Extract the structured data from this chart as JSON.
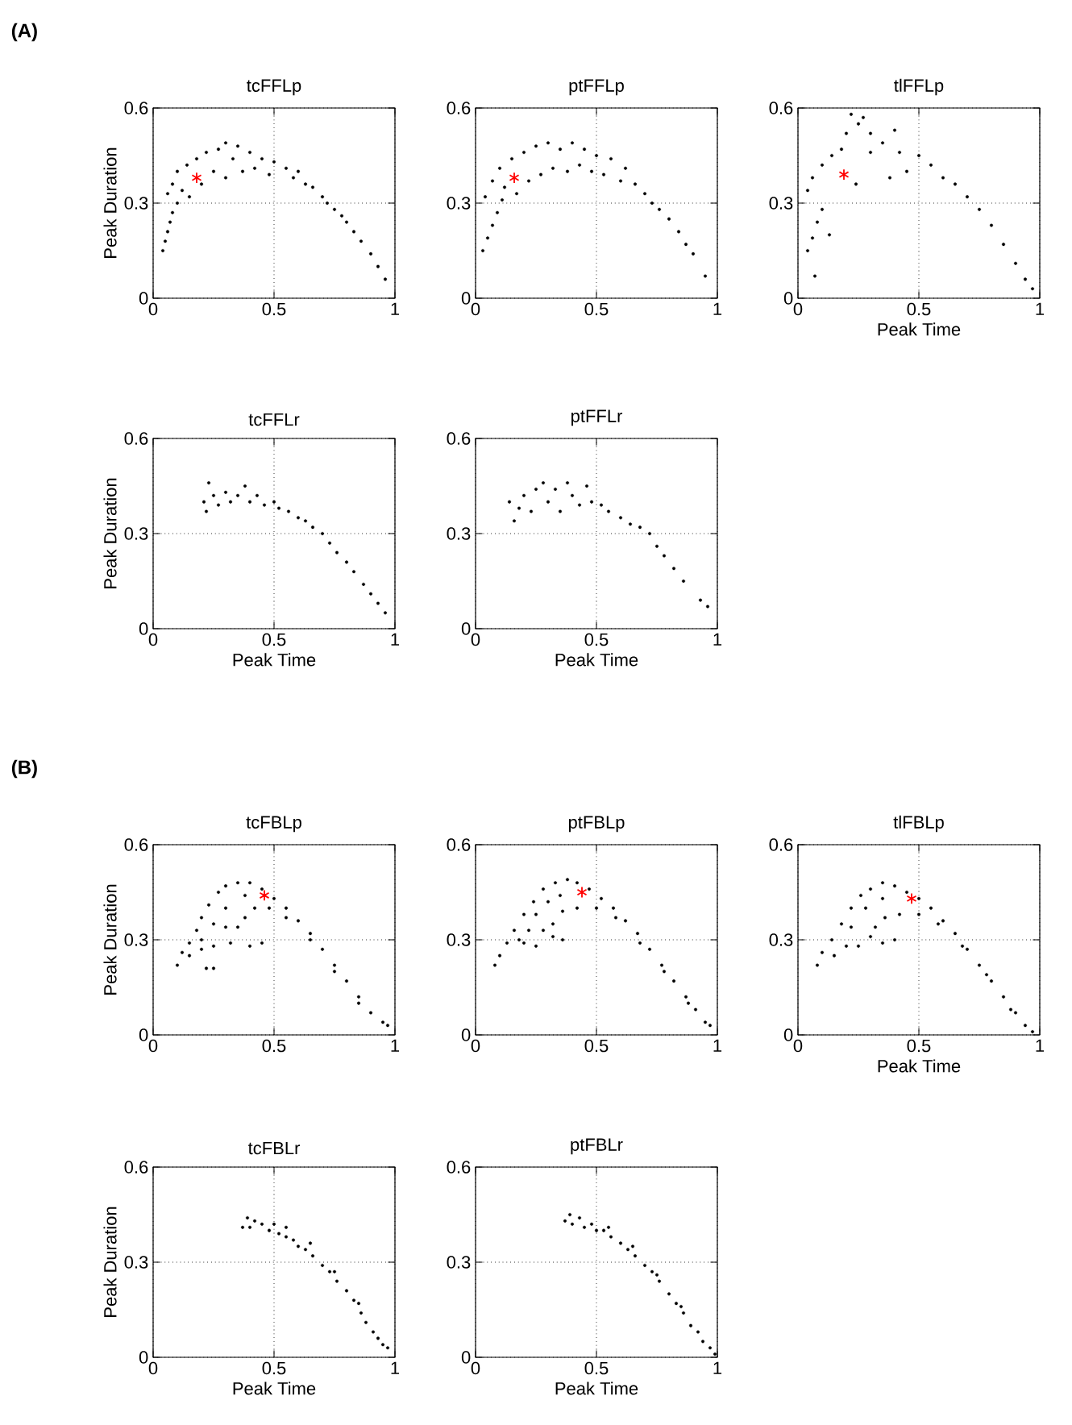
{
  "chart_data": [
    {
      "type": "scatter",
      "title": "tcFFLp",
      "ylabel": "Peak Duration",
      "annotations": [
        "(A)"
      ],
      "xlim": [
        0,
        1
      ],
      "ylim": [
        0,
        0.6
      ],
      "xticks": [
        0,
        0.5,
        1
      ],
      "yticks": [
        0,
        0.3,
        0.6
      ],
      "grid": true,
      "series": [
        {
          "color": "#000000",
          "marker": "circle",
          "x": [
            0.04,
            0.05,
            0.06,
            0.07,
            0.08,
            0.1,
            0.06,
            0.08,
            0.1,
            0.12,
            0.14,
            0.15,
            0.18,
            0.2,
            0.22,
            0.25,
            0.27,
            0.3,
            0.3,
            0.33,
            0.35,
            0.37,
            0.4,
            0.42,
            0.45,
            0.48,
            0.5,
            0.55,
            0.58,
            0.6,
            0.63,
            0.66,
            0.7,
            0.72,
            0.75,
            0.78,
            0.8,
            0.83,
            0.86,
            0.9,
            0.93,
            0.96
          ],
          "values": [
            0.15,
            0.18,
            0.21,
            0.24,
            0.27,
            0.3,
            0.33,
            0.36,
            0.4,
            0.34,
            0.42,
            0.32,
            0.44,
            0.36,
            0.46,
            0.4,
            0.47,
            0.49,
            0.38,
            0.44,
            0.48,
            0.4,
            0.46,
            0.41,
            0.44,
            0.39,
            0.43,
            0.41,
            0.38,
            0.4,
            0.36,
            0.35,
            0.32,
            0.3,
            0.28,
            0.26,
            0.24,
            0.21,
            0.18,
            0.14,
            0.1,
            0.06
          ]
        },
        {
          "color": "#ff0000",
          "marker": "cross",
          "x": [
            0.18
          ],
          "values": [
            0.38
          ]
        }
      ]
    },
    {
      "type": "scatter",
      "title": "ptFFLp",
      "xlim": [
        0,
        1
      ],
      "ylim": [
        0,
        0.6
      ],
      "xticks": [
        0,
        0.5,
        1
      ],
      "yticks": [
        0,
        0.3,
        0.6
      ],
      "grid": true,
      "series": [
        {
          "color": "#000000",
          "marker": "circle",
          "x": [
            0.03,
            0.05,
            0.07,
            0.09,
            0.11,
            0.04,
            0.07,
            0.1,
            0.12,
            0.15,
            0.17,
            0.2,
            0.22,
            0.25,
            0.27,
            0.3,
            0.32,
            0.35,
            0.38,
            0.4,
            0.43,
            0.45,
            0.48,
            0.5,
            0.53,
            0.56,
            0.6,
            0.62,
            0.66,
            0.7,
            0.73,
            0.76,
            0.8,
            0.84,
            0.87,
            0.9,
            0.95
          ],
          "values": [
            0.15,
            0.19,
            0.23,
            0.27,
            0.31,
            0.32,
            0.37,
            0.41,
            0.35,
            0.44,
            0.33,
            0.46,
            0.37,
            0.48,
            0.39,
            0.49,
            0.41,
            0.47,
            0.4,
            0.49,
            0.42,
            0.47,
            0.4,
            0.45,
            0.39,
            0.44,
            0.37,
            0.41,
            0.36,
            0.33,
            0.3,
            0.28,
            0.25,
            0.21,
            0.17,
            0.14,
            0.07
          ]
        },
        {
          "color": "#ff0000",
          "marker": "cross",
          "x": [
            0.16
          ],
          "values": [
            0.38
          ]
        }
      ]
    },
    {
      "type": "scatter",
      "title": "tlFFLp",
      "xlabel": "Peak Time",
      "xlim": [
        0,
        1
      ],
      "ylim": [
        0,
        0.6
      ],
      "xticks": [
        0,
        0.5,
        1
      ],
      "yticks": [
        0,
        0.3,
        0.6
      ],
      "grid": true,
      "series": [
        {
          "color": "#000000",
          "marker": "circle",
          "x": [
            0.04,
            0.06,
            0.08,
            0.1,
            0.04,
            0.06,
            0.1,
            0.13,
            0.07,
            0.14,
            0.18,
            0.2,
            0.22,
            0.25,
            0.27,
            0.3,
            0.24,
            0.3,
            0.35,
            0.38,
            0.4,
            0.42,
            0.45,
            0.5,
            0.55,
            0.6,
            0.65,
            0.7,
            0.75,
            0.8,
            0.85,
            0.9,
            0.94,
            0.97
          ],
          "values": [
            0.15,
            0.19,
            0.24,
            0.28,
            0.34,
            0.38,
            0.42,
            0.2,
            0.07,
            0.45,
            0.47,
            0.52,
            0.58,
            0.55,
            0.57,
            0.52,
            0.36,
            0.46,
            0.49,
            0.38,
            0.53,
            0.46,
            0.4,
            0.45,
            0.42,
            0.38,
            0.36,
            0.32,
            0.28,
            0.23,
            0.17,
            0.11,
            0.06,
            0.03
          ]
        },
        {
          "color": "#ff0000",
          "marker": "cross",
          "x": [
            0.19
          ],
          "values": [
            0.39
          ]
        }
      ]
    },
    {
      "type": "scatter",
      "title": "tcFFLr",
      "xlabel": "Peak Time",
      "ylabel": "Peak Duration",
      "xlim": [
        0,
        1
      ],
      "ylim": [
        0,
        0.6
      ],
      "xticks": [
        0,
        0.5,
        1
      ],
      "yticks": [
        0,
        0.3,
        0.6
      ],
      "grid": true,
      "series": [
        {
          "color": "#000000",
          "marker": "circle",
          "x": [
            0.21,
            0.22,
            0.23,
            0.25,
            0.27,
            0.3,
            0.32,
            0.35,
            0.38,
            0.4,
            0.43,
            0.46,
            0.5,
            0.52,
            0.56,
            0.6,
            0.63,
            0.66,
            0.7,
            0.73,
            0.76,
            0.8,
            0.83,
            0.87,
            0.9,
            0.93,
            0.96
          ],
          "values": [
            0.4,
            0.37,
            0.46,
            0.42,
            0.39,
            0.43,
            0.4,
            0.42,
            0.45,
            0.4,
            0.42,
            0.39,
            0.4,
            0.38,
            0.37,
            0.35,
            0.34,
            0.32,
            0.3,
            0.27,
            0.24,
            0.21,
            0.18,
            0.14,
            0.11,
            0.08,
            0.05
          ]
        }
      ]
    },
    {
      "type": "scatter",
      "title": "ptFFLr",
      "xlabel": "Peak Time",
      "xlim": [
        0,
        1
      ],
      "ylim": [
        0,
        0.6
      ],
      "xticks": [
        0,
        0.5,
        1
      ],
      "yticks": [
        0,
        0.3,
        0.6
      ],
      "grid": true,
      "series": [
        {
          "color": "#000000",
          "marker": "circle",
          "x": [
            0.14,
            0.16,
            0.18,
            0.2,
            0.23,
            0.25,
            0.28,
            0.3,
            0.33,
            0.35,
            0.38,
            0.4,
            0.43,
            0.46,
            0.48,
            0.52,
            0.55,
            0.6,
            0.64,
            0.68,
            0.72,
            0.75,
            0.78,
            0.82,
            0.86,
            0.93,
            0.96
          ],
          "values": [
            0.4,
            0.34,
            0.38,
            0.42,
            0.37,
            0.44,
            0.46,
            0.4,
            0.44,
            0.37,
            0.46,
            0.42,
            0.39,
            0.45,
            0.4,
            0.39,
            0.37,
            0.35,
            0.33,
            0.32,
            0.3,
            0.26,
            0.23,
            0.19,
            0.15,
            0.09,
            0.07
          ]
        }
      ]
    },
    {
      "type": "scatter",
      "title": "tcFBLp",
      "ylabel": "Peak Duration",
      "annotations": [
        "(B)"
      ],
      "xlim": [
        0,
        1
      ],
      "ylim": [
        0,
        0.6
      ],
      "xticks": [
        0,
        0.5,
        1
      ],
      "yticks": [
        0,
        0.3,
        0.6
      ],
      "grid": true,
      "series": [
        {
          "color": "#000000",
          "marker": "circle",
          "x": [
            0.1,
            0.12,
            0.15,
            0.18,
            0.2,
            0.23,
            0.27,
            0.3,
            0.35,
            0.4,
            0.45,
            0.5,
            0.55,
            0.6,
            0.65,
            0.7,
            0.75,
            0.8,
            0.85,
            0.9,
            0.95,
            0.97,
            0.85,
            0.75,
            0.65,
            0.55,
            0.48,
            0.42,
            0.38,
            0.35,
            0.3,
            0.32,
            0.4,
            0.45,
            0.25,
            0.2,
            0.15,
            0.22,
            0.25,
            0.3,
            0.25,
            0.38,
            0.2
          ],
          "values": [
            0.22,
            0.26,
            0.29,
            0.33,
            0.37,
            0.41,
            0.45,
            0.47,
            0.48,
            0.48,
            0.46,
            0.43,
            0.4,
            0.36,
            0.32,
            0.27,
            0.22,
            0.17,
            0.12,
            0.07,
            0.04,
            0.03,
            0.1,
            0.2,
            0.3,
            0.37,
            0.4,
            0.4,
            0.37,
            0.34,
            0.34,
            0.29,
            0.28,
            0.29,
            0.28,
            0.27,
            0.25,
            0.21,
            0.21,
            0.4,
            0.35,
            0.44,
            0.3
          ]
        },
        {
          "color": "#ff0000",
          "marker": "cross",
          "x": [
            0.46
          ],
          "values": [
            0.44
          ]
        }
      ]
    },
    {
      "type": "scatter",
      "title": "ptFBLp",
      "xlim": [
        0,
        1
      ],
      "ylim": [
        0,
        0.6
      ],
      "xticks": [
        0,
        0.5,
        1
      ],
      "yticks": [
        0,
        0.3,
        0.6
      ],
      "grid": true,
      "series": [
        {
          "color": "#000000",
          "marker": "circle",
          "x": [
            0.08,
            0.1,
            0.13,
            0.16,
            0.2,
            0.24,
            0.28,
            0.33,
            0.38,
            0.42,
            0.47,
            0.52,
            0.57,
            0.62,
            0.67,
            0.72,
            0.77,
            0.82,
            0.87,
            0.91,
            0.95,
            0.97,
            0.88,
            0.78,
            0.68,
            0.58,
            0.5,
            0.42,
            0.36,
            0.32,
            0.28,
            0.22,
            0.2,
            0.25,
            0.32,
            0.36,
            0.3,
            0.25,
            0.35,
            0.18
          ],
          "values": [
            0.22,
            0.25,
            0.29,
            0.33,
            0.38,
            0.42,
            0.46,
            0.48,
            0.49,
            0.48,
            0.46,
            0.43,
            0.4,
            0.36,
            0.32,
            0.27,
            0.22,
            0.17,
            0.12,
            0.08,
            0.04,
            0.03,
            0.1,
            0.2,
            0.29,
            0.37,
            0.4,
            0.4,
            0.39,
            0.35,
            0.33,
            0.33,
            0.29,
            0.28,
            0.31,
            0.3,
            0.42,
            0.38,
            0.44,
            0.3
          ]
        },
        {
          "color": "#ff0000",
          "marker": "cross",
          "x": [
            0.44
          ],
          "values": [
            0.45
          ]
        }
      ]
    },
    {
      "type": "scatter",
      "title": "tlFBLp",
      "xlabel": "Peak Time",
      "xlim": [
        0,
        1
      ],
      "ylim": [
        0,
        0.6
      ],
      "xticks": [
        0,
        0.5,
        1
      ],
      "yticks": [
        0,
        0.3,
        0.6
      ],
      "grid": true,
      "series": [
        {
          "color": "#000000",
          "marker": "circle",
          "x": [
            0.08,
            0.1,
            0.14,
            0.18,
            0.22,
            0.26,
            0.3,
            0.35,
            0.4,
            0.45,
            0.5,
            0.55,
            0.6,
            0.65,
            0.7,
            0.75,
            0.8,
            0.85,
            0.9,
            0.94,
            0.97,
            0.88,
            0.78,
            0.68,
            0.58,
            0.5,
            0.42,
            0.36,
            0.32,
            0.3,
            0.35,
            0.4,
            0.25,
            0.2,
            0.15,
            0.28,
            0.22,
            0.35
          ],
          "values": [
            0.22,
            0.26,
            0.3,
            0.35,
            0.4,
            0.44,
            0.46,
            0.48,
            0.47,
            0.45,
            0.43,
            0.4,
            0.36,
            0.32,
            0.27,
            0.22,
            0.17,
            0.12,
            0.07,
            0.03,
            0.01,
            0.08,
            0.19,
            0.28,
            0.35,
            0.38,
            0.38,
            0.37,
            0.34,
            0.31,
            0.29,
            0.3,
            0.28,
            0.28,
            0.25,
            0.4,
            0.34,
            0.43
          ]
        },
        {
          "color": "#ff0000",
          "marker": "cross",
          "x": [
            0.47
          ],
          "values": [
            0.43
          ]
        }
      ]
    },
    {
      "type": "scatter",
      "title": "tcFBLr",
      "xlabel": "Peak Time",
      "ylabel": "Peak Duration",
      "xlim": [
        0,
        1
      ],
      "ylim": [
        0,
        0.6
      ],
      "xticks": [
        0,
        0.5,
        1
      ],
      "yticks": [
        0,
        0.3,
        0.6
      ],
      "grid": true,
      "series": [
        {
          "color": "#000000",
          "marker": "circle",
          "x": [
            0.37,
            0.39,
            0.4,
            0.42,
            0.45,
            0.48,
            0.5,
            0.52,
            0.55,
            0.58,
            0.6,
            0.63,
            0.66,
            0.7,
            0.73,
            0.76,
            0.8,
            0.83,
            0.86,
            0.88,
            0.91,
            0.93,
            0.95,
            0.97,
            0.55,
            0.65,
            0.75,
            0.85
          ],
          "values": [
            0.41,
            0.44,
            0.41,
            0.43,
            0.42,
            0.4,
            0.42,
            0.39,
            0.38,
            0.37,
            0.35,
            0.34,
            0.32,
            0.29,
            0.27,
            0.24,
            0.21,
            0.18,
            0.14,
            0.11,
            0.08,
            0.06,
            0.04,
            0.03,
            0.41,
            0.36,
            0.27,
            0.17
          ]
        }
      ]
    },
    {
      "type": "scatter",
      "title": "ptFBLr",
      "xlabel": "Peak Time",
      "xlim": [
        0,
        1
      ],
      "ylim": [
        0,
        0.6
      ],
      "xticks": [
        0,
        0.5,
        1
      ],
      "yticks": [
        0,
        0.3,
        0.6
      ],
      "grid": true,
      "series": [
        {
          "color": "#000000",
          "marker": "circle",
          "x": [
            0.37,
            0.39,
            0.4,
            0.43,
            0.45,
            0.48,
            0.5,
            0.53,
            0.56,
            0.6,
            0.63,
            0.66,
            0.7,
            0.73,
            0.76,
            0.8,
            0.83,
            0.86,
            0.89,
            0.92,
            0.94,
            0.97,
            0.99,
            0.55,
            0.65,
            0.75,
            0.85
          ],
          "values": [
            0.43,
            0.45,
            0.42,
            0.44,
            0.41,
            0.42,
            0.4,
            0.4,
            0.38,
            0.36,
            0.34,
            0.32,
            0.29,
            0.27,
            0.24,
            0.2,
            0.17,
            0.14,
            0.1,
            0.08,
            0.05,
            0.03,
            0.01,
            0.41,
            0.35,
            0.26,
            0.16
          ]
        }
      ]
    }
  ]
}
